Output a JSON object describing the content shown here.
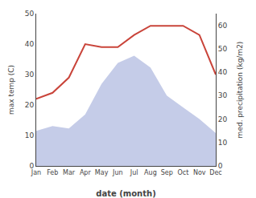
{
  "chart_data": {
    "type": "line",
    "categories": [
      "Jan",
      "Feb",
      "Mar",
      "Apr",
      "May",
      "Jun",
      "Jul",
      "Aug",
      "Sep",
      "Oct",
      "Nov",
      "Dec"
    ],
    "series": [
      {
        "type": "area",
        "color": "#c5cce8",
        "axis": "y2",
        "values": [
          15,
          17,
          16,
          22,
          35,
          44,
          47,
          42,
          30,
          25,
          20,
          14
        ]
      },
      {
        "type": "line",
        "color": "#c9443a",
        "values": [
          22,
          24,
          29,
          40,
          39,
          39,
          43,
          46,
          46,
          46,
          43,
          30
        ]
      }
    ],
    "xlabel": "date (month)",
    "ylabel": "max temp (C)",
    "y2label": "med. precipitation (kg/m2)",
    "ylim": [
      0,
      50
    ],
    "yticks": [
      0,
      10,
      20,
      30,
      40,
      50
    ],
    "y2lim": [
      0,
      65
    ],
    "y2ticks": [
      0,
      10,
      20,
      30,
      40,
      50,
      60
    ],
    "grid": false
  }
}
